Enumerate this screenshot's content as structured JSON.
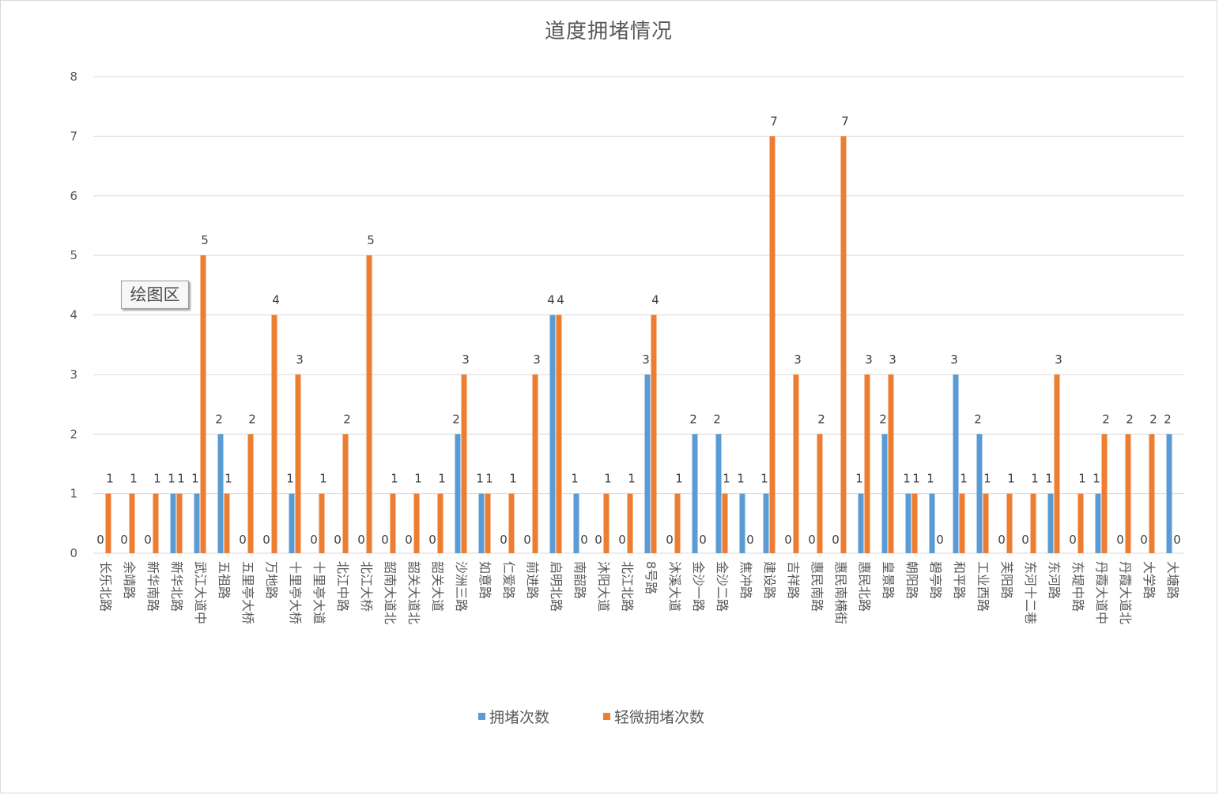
{
  "chart_data": {
    "type": "bar",
    "title": "道度拥堵情况",
    "xlabel": "",
    "ylabel": "",
    "ylim": [
      0,
      8
    ],
    "yticks": [
      0,
      1,
      2,
      3,
      4,
      5,
      6,
      7,
      8
    ],
    "grid": true,
    "legend_position": "bottom",
    "categories": [
      "长乐北路",
      "余靖路",
      "新华南路",
      "新华北路",
      "武江大道中",
      "五祖路",
      "五里亭大桥",
      "万地路",
      "十里亭大桥",
      "十里亭大道",
      "北江中路",
      "北江大桥",
      "韶南大道北",
      "韶关大道北",
      "韶关大道",
      "沙洲三路",
      "如意路",
      "仁爱路",
      "前进路",
      "启明北路",
      "南韶路",
      "沐阳大道",
      "北江北路",
      "8号路",
      "沐溪大道",
      "金沙一路",
      "金沙二路",
      "焦冲路",
      "建设路",
      "吉祥路",
      "惠民南路",
      "惠民南横街",
      "惠民北路",
      "皇景路",
      "朝阳路",
      "碧亭路",
      "和平路",
      "工业西路",
      "芙阳路",
      "东河十二巷",
      "东河路",
      "东堤中路",
      "丹霞大道中",
      "丹霞大道北",
      "大学路",
      "大塘路"
    ],
    "series": [
      {
        "name": "拥堵次数",
        "color": "#5b9bd5",
        "values": [
          0,
          0,
          0,
          1,
          1,
          2,
          0,
          0,
          1,
          0,
          0,
          0,
          0,
          0,
          0,
          2,
          1,
          0,
          0,
          4,
          1,
          0,
          0,
          3,
          0,
          2,
          2,
          1,
          1,
          0,
          0,
          0,
          1,
          2,
          1,
          1,
          3,
          2,
          0,
          0,
          1,
          0,
          1,
          0,
          0,
          2
        ]
      },
      {
        "name": "轻微拥堵次数",
        "color": "#ed7d31",
        "values": [
          1,
          1,
          1,
          1,
          5,
          1,
          2,
          4,
          3,
          1,
          2,
          5,
          1,
          1,
          1,
          3,
          1,
          1,
          3,
          4,
          0,
          1,
          1,
          4,
          1,
          0,
          1,
          0,
          7,
          3,
          2,
          7,
          3,
          3,
          1,
          0,
          1,
          1,
          1,
          1,
          3,
          1,
          2,
          2,
          2,
          0
        ]
      }
    ]
  },
  "tooltip": {
    "text": "绘图区"
  }
}
